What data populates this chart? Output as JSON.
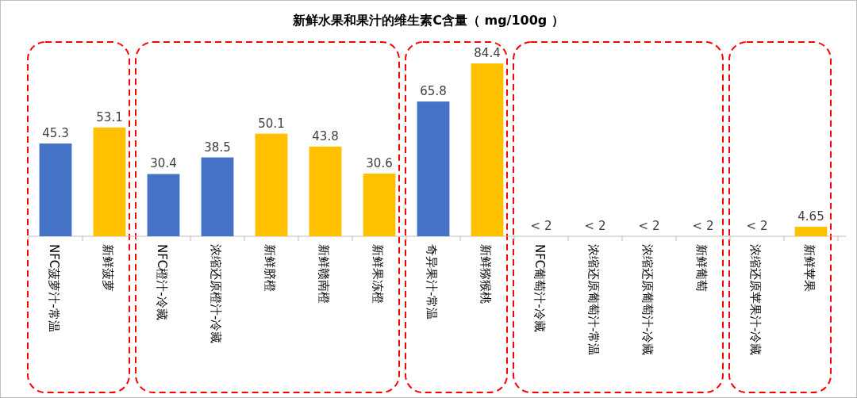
{
  "chart_data": {
    "type": "bar",
    "title": "新鲜水果和果汁的维生素C含量（ mg/100g ）",
    "categories": [
      "NFC菠萝汁-常温",
      "新鲜菠萝",
      "NFC橙汁-冷藏",
      "浓缩还原橙汁-冷藏",
      "新鲜脐橙",
      "新鲜赣南橙",
      "新鲜果冻橙",
      "奇异果汁-常温",
      "新鲜猕猴桃",
      "NFC葡萄汁-冷藏",
      "浓缩还原葡萄汁-常温",
      "浓缩还原葡萄汁-冷藏",
      "新鲜葡萄",
      "浓缩还原苹果汁-冷藏",
      "新鲜苹果"
    ],
    "values": [
      45.3,
      53.1,
      30.4,
      38.5,
      50.1,
      43.8,
      30.6,
      65.8,
      84.4,
      null,
      null,
      null,
      null,
      null,
      4.65
    ],
    "value_labels": [
      "45.3",
      "53.1",
      "30.4",
      "38.5",
      "50.1",
      "43.8",
      "30.6",
      "65.8",
      "84.4",
      "< 2",
      "< 2",
      "< 2",
      "< 2",
      "< 2",
      "4.65"
    ],
    "colors": [
      "#4472c4",
      "#ffc000",
      "#4472c4",
      "#4472c4",
      "#ffc000",
      "#ffc000",
      "#ffc000",
      "#4472c4",
      "#ffc000",
      null,
      null,
      null,
      null,
      null,
      "#ffc000"
    ]
  }
}
